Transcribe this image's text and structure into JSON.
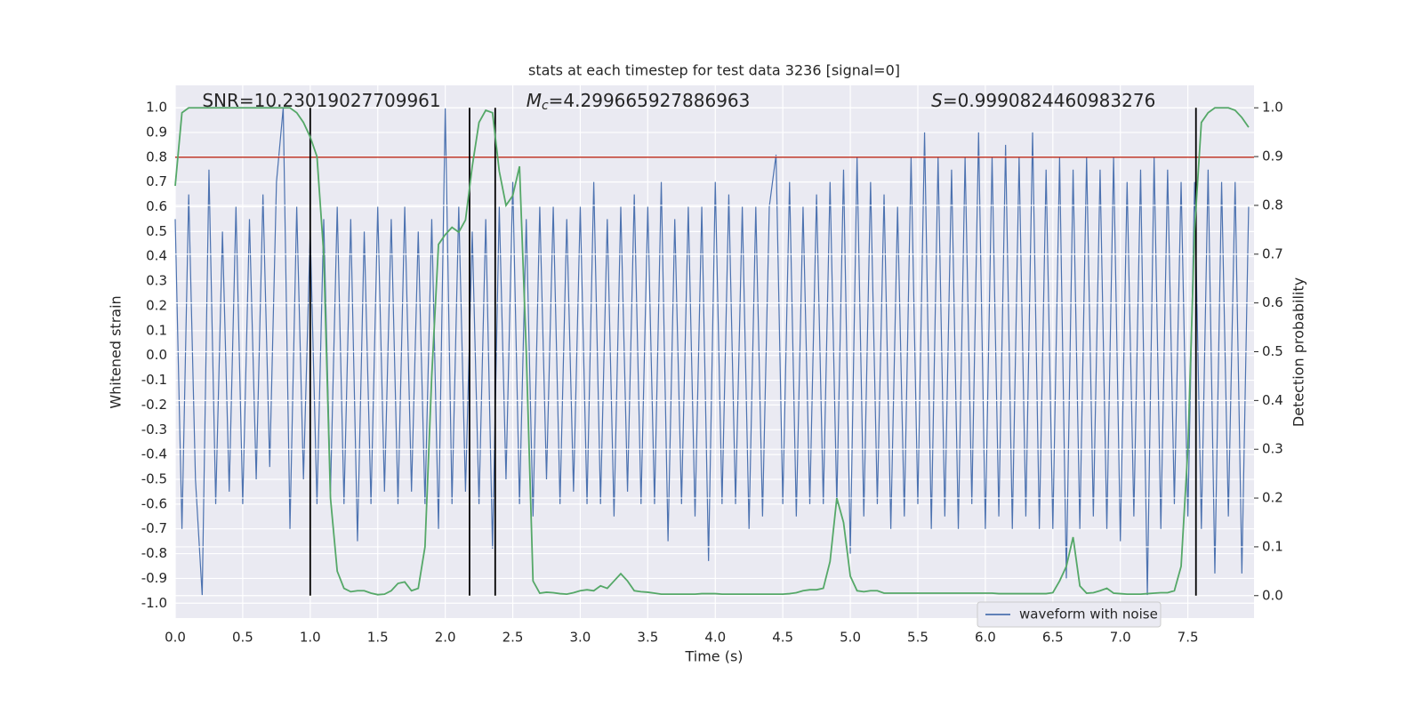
{
  "chart_data": {
    "type": "line",
    "title": "stats at each timestep for test data 3236 [signal=0]",
    "xlabel": "Time (s)",
    "ylabel": "Whitened strain",
    "y2label": "Detection probability",
    "x": [
      0,
      0.05,
      0.1,
      0.15,
      0.2,
      0.25,
      0.3,
      0.35,
      0.4,
      0.45,
      0.5,
      0.55,
      0.6,
      0.65,
      0.7,
      0.75,
      0.8,
      0.85,
      0.9,
      0.95,
      1,
      1.05,
      1.1,
      1.15,
      1.2,
      1.25,
      1.3,
      1.35,
      1.4,
      1.45,
      1.5,
      1.55,
      1.6,
      1.65,
      1.7,
      1.75,
      1.8,
      1.85,
      1.9,
      1.95,
      2,
      2.05,
      2.1,
      2.15,
      2.2,
      2.25,
      2.3,
      2.35,
      2.4,
      2.45,
      2.5,
      2.55,
      2.6,
      2.65,
      2.7,
      2.75,
      2.8,
      2.85,
      2.9,
      2.95,
      3,
      3.05,
      3.1,
      3.15,
      3.2,
      3.25,
      3.3,
      3.35,
      3.4,
      3.45,
      3.5,
      3.55,
      3.6,
      3.65,
      3.7,
      3.75,
      3.8,
      3.85,
      3.9,
      3.95,
      4,
      4.05,
      4.1,
      4.15,
      4.2,
      4.25,
      4.3,
      4.35,
      4.4,
      4.45,
      4.5,
      4.55,
      4.6,
      4.65,
      4.7,
      4.75,
      4.8,
      4.85,
      4.9,
      4.95,
      5,
      5.05,
      5.1,
      5.15,
      5.2,
      5.25,
      5.3,
      5.35,
      5.4,
      5.45,
      5.5,
      5.55,
      5.6,
      5.65,
      5.7,
      5.75,
      5.8,
      5.85,
      5.9,
      5.95,
      6,
      6.05,
      6.1,
      6.15,
      6.2,
      6.25,
      6.3,
      6.35,
      6.4,
      6.45,
      6.5,
      6.55,
      6.6,
      6.65,
      6.7,
      6.75,
      6.8,
      6.85,
      6.9,
      6.95,
      7,
      7.05,
      7.1,
      7.15,
      7.2,
      7.25,
      7.3,
      7.35,
      7.4,
      7.45,
      7.5,
      7.55,
      7.6,
      7.65,
      7.7,
      7.75,
      7.8,
      7.85,
      7.9,
      7.95
    ],
    "series": [
      {
        "name": "waveform with noise",
        "color": "#4c72b0",
        "axis": "y",
        "values": [
          0.55,
          -0.7,
          0.65,
          -0.5,
          -0.97,
          0.75,
          -0.6,
          0.5,
          -0.55,
          0.6,
          -0.6,
          0.55,
          -0.5,
          0.65,
          -0.45,
          0.7,
          1.0,
          -0.7,
          0.6,
          -0.5,
          0.5,
          -0.6,
          0.55,
          -0.55,
          0.6,
          -0.6,
          0.55,
          -0.75,
          0.5,
          -0.6,
          0.6,
          -0.55,
          0.55,
          -0.6,
          0.6,
          -0.55,
          0.5,
          -0.6,
          0.55,
          -0.7,
          1.0,
          -0.6,
          0.6,
          -0.55,
          0.5,
          -0.6,
          0.55,
          -0.78,
          0.6,
          -0.5,
          0.7,
          -0.6,
          0.55,
          -0.65,
          0.6,
          -0.5,
          0.6,
          -0.6,
          0.55,
          -0.55,
          0.6,
          -0.6,
          0.7,
          -0.6,
          0.55,
          -0.65,
          0.6,
          -0.55,
          0.65,
          -0.6,
          0.6,
          -0.6,
          0.7,
          -0.75,
          0.55,
          -0.6,
          0.6,
          -0.65,
          0.6,
          -0.83,
          0.7,
          -0.6,
          0.65,
          -0.6,
          0.6,
          -0.7,
          0.6,
          -0.65,
          0.6,
          0.81,
          -0.6,
          0.7,
          -0.65,
          0.6,
          -0.6,
          0.65,
          -0.6,
          0.7,
          -0.6,
          0.75,
          -0.8,
          0.8,
          -0.65,
          0.7,
          -0.6,
          0.65,
          -0.7,
          0.6,
          -0.65,
          0.8,
          -0.6,
          0.9,
          -0.7,
          0.8,
          -0.65,
          0.75,
          -0.7,
          0.8,
          -0.6,
          0.9,
          -0.7,
          0.8,
          -0.65,
          0.85,
          -0.7,
          0.8,
          -0.65,
          0.9,
          -0.7,
          0.75,
          -0.7,
          0.8,
          -0.9,
          0.75,
          -0.7,
          0.8,
          -0.65,
          0.75,
          -0.7,
          0.8,
          -0.75,
          0.7,
          -0.65,
          0.75,
          -0.97,
          0.8,
          -0.7,
          0.75,
          -0.6,
          0.7,
          -0.65,
          0.7,
          -0.7,
          0.75,
          -0.88,
          0.7,
          -0.65,
          0.7,
          -0.88,
          0.6
        ]
      },
      {
        "color": "#55a868",
        "axis": "y2",
        "values": [
          0.84,
          0.99,
          1,
          1,
          1,
          1,
          1,
          1,
          1,
          1,
          1,
          1,
          1,
          1,
          1,
          1,
          1,
          1,
          0.99,
          0.97,
          0.94,
          0.9,
          0.7,
          0.2,
          0.05,
          0.015,
          0.008,
          0.01,
          0.01,
          0.005,
          0.002,
          0.003,
          0.01,
          0.025,
          0.028,
          0.01,
          0.015,
          0.1,
          0.45,
          0.72,
          0.74,
          0.755,
          0.745,
          0.77,
          0.88,
          0.97,
          0.995,
          0.99,
          0.87,
          0.8,
          0.82,
          0.88,
          0.5,
          0.03,
          0.005,
          0.007,
          0.006,
          0.004,
          0.003,
          0.006,
          0.01,
          0.012,
          0.01,
          0.02,
          0.015,
          0.03,
          0.045,
          0.03,
          0.01,
          0.008,
          0.007,
          0.005,
          0.003,
          0.003,
          0.003,
          0.003,
          0.003,
          0.003,
          0.004,
          0.004,
          0.004,
          0.003,
          0.003,
          0.003,
          0.003,
          0.003,
          0.003,
          0.003,
          0.003,
          0.003,
          0.003,
          0.004,
          0.006,
          0.01,
          0.012,
          0.012,
          0.015,
          0.07,
          0.2,
          0.15,
          0.04,
          0.01,
          0.008,
          0.01,
          0.01,
          0.005,
          0.005,
          0.005,
          0.005,
          0.005,
          0.005,
          0.005,
          0.005,
          0.005,
          0.005,
          0.005,
          0.005,
          0.005,
          0.005,
          0.005,
          0.005,
          0.005,
          0.004,
          0.004,
          0.004,
          0.004,
          0.004,
          0.004,
          0.004,
          0.004,
          0.006,
          0.03,
          0.06,
          0.12,
          0.02,
          0.005,
          0.006,
          0.01,
          0.015,
          0.005,
          0.004,
          0.003,
          0.003,
          0.003,
          0.004,
          0.005,
          0.006,
          0.006,
          0.01,
          0.06,
          0.3,
          0.75,
          0.97,
          0.99,
          1,
          1,
          1,
          0.995,
          0.98,
          0.96
        ]
      }
    ],
    "hline": {
      "y": 0.8,
      "color": "#c0392b"
    },
    "vlines": {
      "x": [
        1.0,
        2.18,
        2.37,
        7.56
      ],
      "ymin": 0,
      "ymax": 1,
      "axis": "y2",
      "color": "#000000"
    },
    "annotations": [
      {
        "text": "SNR=10.23019027709961",
        "x": 0.2
      },
      {
        "symbol": "M",
        "subscript": "c",
        "text": "=4.299665927886963",
        "x": 2.6
      },
      {
        "symbol": "S",
        "text": "=0.9990824460983276",
        "x": 5.6
      }
    ],
    "xlim": [
      0,
      7.99
    ],
    "ylim": [
      -1.06,
      1.09
    ],
    "y2lim": [
      -0.046,
      1.046
    ],
    "xticks": [
      {
        "value": 0,
        "label": "0.0"
      },
      0.5,
      {
        "value": 1,
        "label": "1.0"
      },
      1.5,
      {
        "value": 2,
        "label": "2.0"
      },
      2.5,
      {
        "value": 3,
        "label": "3.0"
      },
      3.5,
      {
        "value": 4,
        "label": "4.0"
      },
      4.5,
      {
        "value": 5,
        "label": "5.0"
      },
      5.5,
      {
        "value": 6,
        "label": "6.0"
      },
      6.5,
      {
        "value": 7,
        "label": "7.0"
      },
      7.5
    ],
    "yticks": [
      {
        "value": -1,
        "label": "-1.0"
      },
      -0.9,
      -0.8,
      -0.7,
      -0.6,
      -0.5,
      -0.4,
      -0.3,
      -0.2,
      -0.1,
      {
        "value": 0,
        "label": "0.0"
      },
      0.1,
      0.2,
      0.3,
      0.4,
      0.5,
      0.6,
      0.7,
      0.8,
      0.9,
      {
        "value": 1,
        "label": "1.0"
      }
    ],
    "y2ticks": [
      {
        "value": 0,
        "label": "0.0"
      },
      0.1,
      0.2,
      0.3,
      0.4,
      0.5,
      0.6,
      0.7,
      0.8,
      0.9,
      {
        "value": 1,
        "label": "1.0"
      }
    ],
    "grid": true,
    "legend": "lower right"
  }
}
